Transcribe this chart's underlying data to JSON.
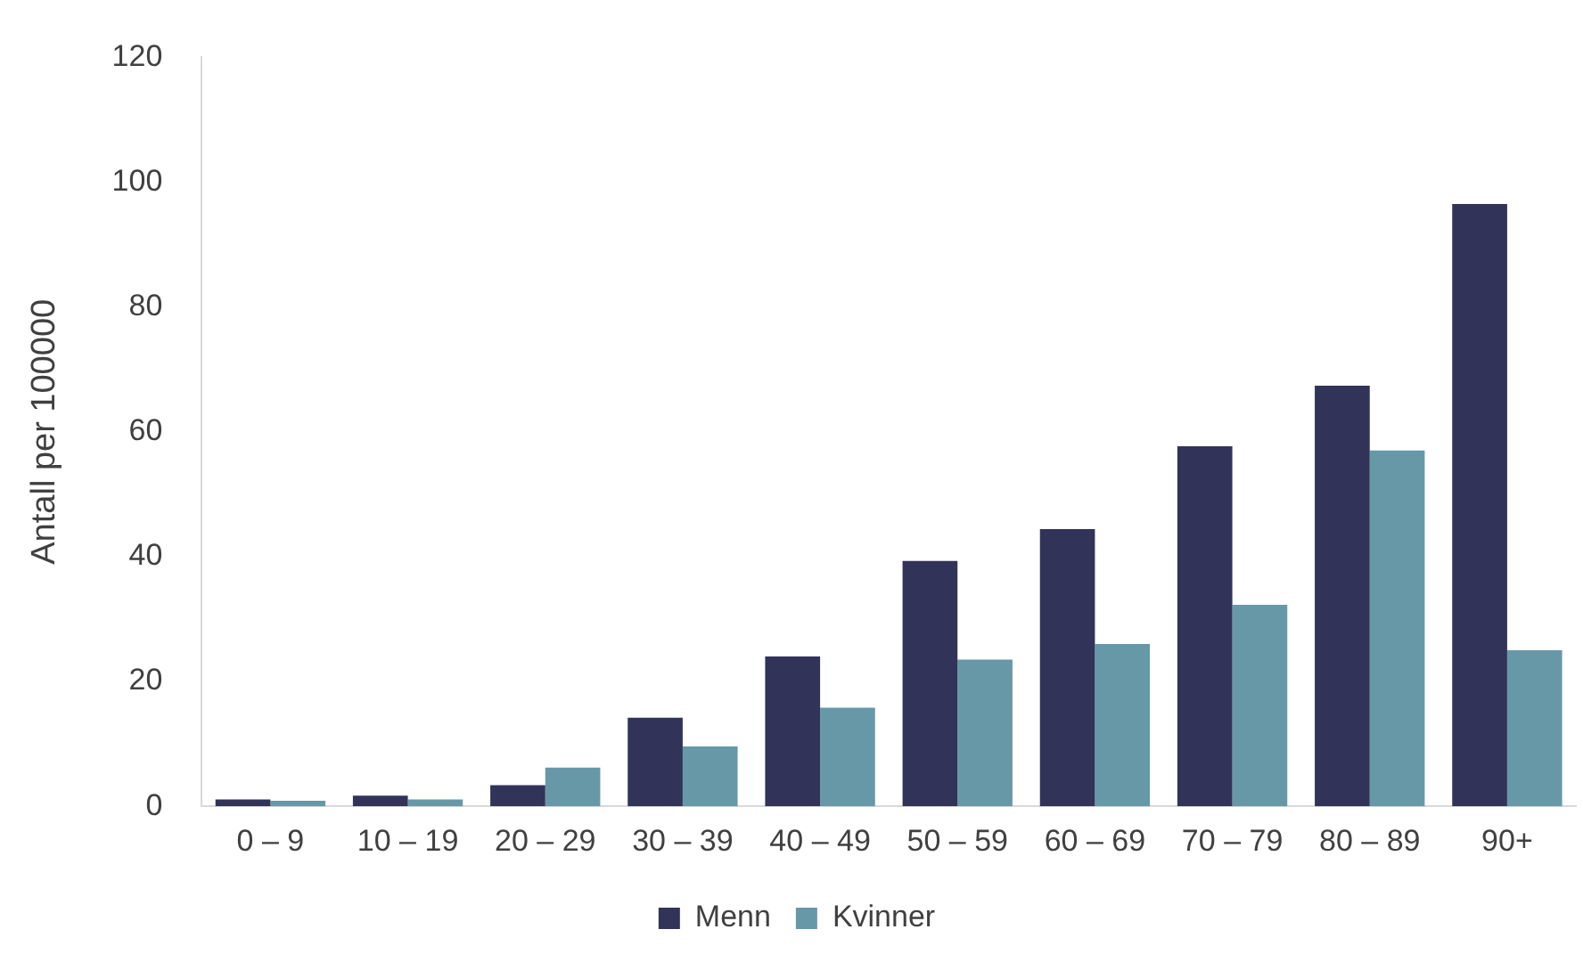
{
  "chart_data": {
    "type": "bar",
    "ylabel": "Antall per 100000",
    "categories": [
      "0 – 9",
      "10 – 19",
      "20 – 29",
      "30 – 39",
      "40 – 49",
      "50 – 59",
      "60 – 69",
      "70 – 79",
      "80 – 89",
      "90+"
    ],
    "series": [
      {
        "name": "Menn",
        "color": "#313359",
        "values": [
          1.1,
          1.7,
          3.4,
          14.2,
          24,
          39.3,
          44.4,
          57.7,
          67.4,
          96.5
        ]
      },
      {
        "name": "Kvinner",
        "color": "#6798a8",
        "values": [
          0.9,
          1.1,
          6.2,
          9.6,
          15.8,
          23.5,
          26,
          32.3,
          57,
          25
        ]
      }
    ],
    "ylim": [
      0,
      120
    ],
    "yticks": [
      0,
      20,
      40,
      60,
      80,
      100,
      120
    ],
    "grid": false,
    "legend": "bottom"
  }
}
